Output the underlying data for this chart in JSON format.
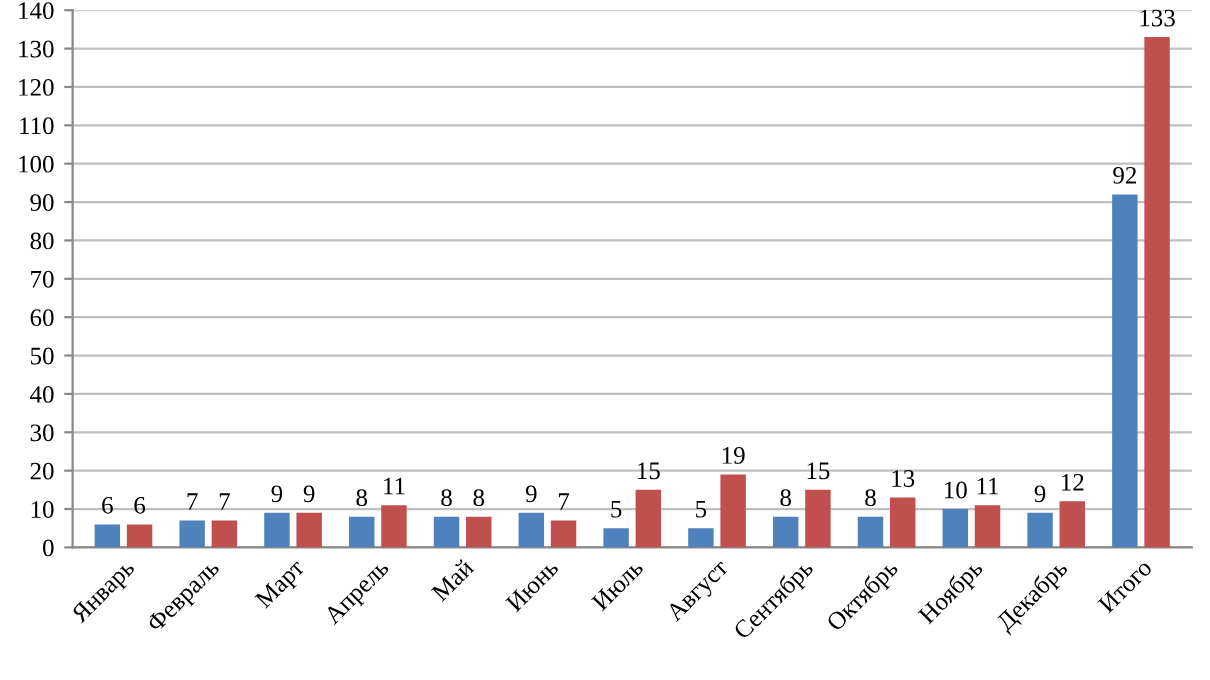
{
  "chart_data": {
    "type": "bar",
    "categories": [
      "Январь",
      "Февраль",
      "Март",
      "Апрель",
      "Май",
      "Июнь",
      "Июль",
      "Август",
      "Сентябрь",
      "Октябрь",
      "Ноябрь",
      "Декабрь",
      "Итого"
    ],
    "series": [
      {
        "color": "#4f81bd",
        "values": [
          6,
          7,
          9,
          8,
          8,
          9,
          5,
          5,
          8,
          8,
          10,
          9,
          92
        ]
      },
      {
        "color": "#c0504d",
        "values": [
          6,
          7,
          9,
          11,
          8,
          7,
          15,
          19,
          15,
          13,
          11,
          12,
          133
        ]
      }
    ],
    "ylim": [
      0,
      140
    ],
    "yticks": [
      0,
      10,
      20,
      30,
      40,
      50,
      60,
      70,
      80,
      90,
      100,
      110,
      120,
      130,
      140
    ],
    "grid": "y",
    "data_labels": true
  }
}
